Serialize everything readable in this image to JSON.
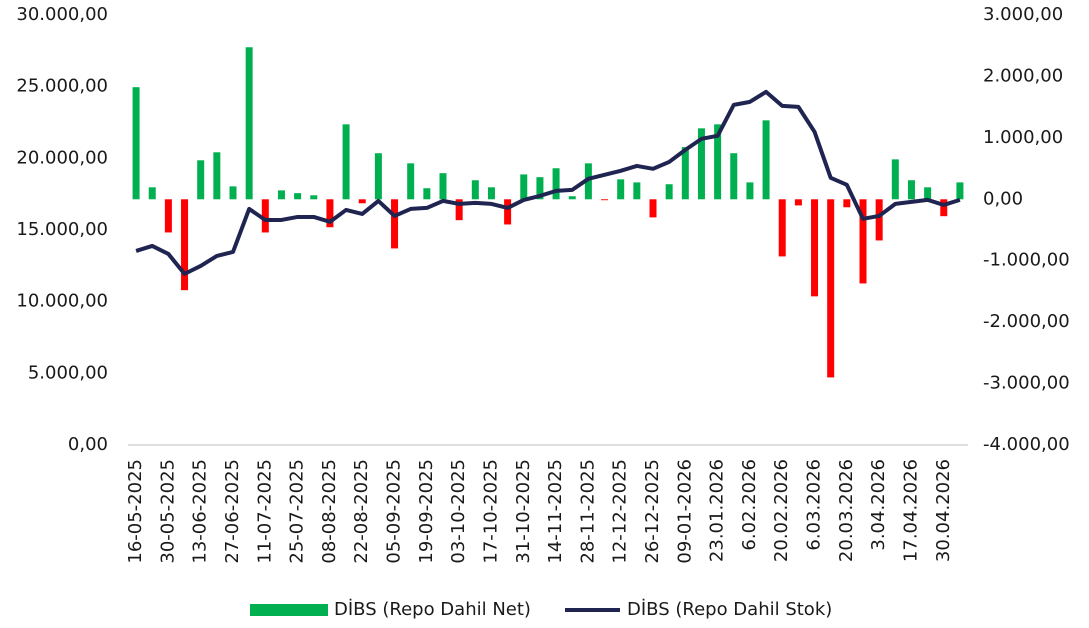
{
  "chart_data": {
    "type": "bar-line",
    "categories": [
      "16-05-2025",
      null,
      "30-05-2025",
      null,
      "13-06-2025",
      null,
      "27-06-2025",
      null,
      "11-07-2025",
      null,
      "25-07-2025",
      null,
      "08-08-2025",
      null,
      "22-08-2025",
      null,
      "05-09-2025",
      null,
      "19-09-2025",
      null,
      "03-10-2025",
      null,
      "17-10-2025",
      null,
      "31-10-2025",
      null,
      "14-11-2025",
      null,
      "28-11-2025",
      null,
      "12-12-2025",
      null,
      "26-12-2025",
      null,
      "09-01-2026",
      null,
      "23.01.2026",
      null,
      "6.02.2026",
      null,
      "20.02.2026",
      null,
      "6.03.2026",
      null,
      "20.03.2026",
      null,
      "3.04.2026",
      null,
      "17.04.2026",
      null,
      "30.04.2026",
      null
    ],
    "series": [
      {
        "name": "DİBS (Repo Dahil Net)",
        "kind": "bar",
        "axis": "y2",
        "color": "#00b050",
        "negative_color": "#ff0000",
        "values": [
          1825,
          195,
          -540,
          -1480,
          635,
          765,
          210,
          2475,
          -540,
          145,
          100,
          65,
          -455,
          1220,
          -65,
          750,
          -800,
          585,
          180,
          425,
          -340,
          310,
          195,
          -410,
          405,
          360,
          505,
          50,
          585,
          -15,
          325,
          275,
          -295,
          245,
          850,
          1155,
          1220,
          750,
          275,
          1285,
          -930,
          -100,
          -1580,
          -2900,
          -130,
          -1370,
          -670,
          650,
          310,
          195,
          -275,
          275
        ]
      },
      {
        "name": "DİBS (Repo Dahil Stok)",
        "kind": "line",
        "axis": "y",
        "color": "#1f2451",
        "values": [
          13540,
          13890,
          13330,
          11940,
          12490,
          13190,
          13470,
          16470,
          15700,
          15700,
          15910,
          15910,
          15570,
          16400,
          16120,
          17030,
          15980,
          16470,
          16540,
          17030,
          16820,
          16890,
          16820,
          16540,
          17100,
          17380,
          17730,
          17800,
          18570,
          18850,
          19130,
          19470,
          19270,
          19750,
          20590,
          21360,
          21570,
          23730,
          23940,
          24640,
          23660,
          23590,
          21850,
          18640,
          18150,
          15780,
          15980,
          16820,
          16960,
          17100,
          16750,
          17100
        ]
      }
    ],
    "ylim": [
      0,
      30000
    ],
    "yticks": [
      {
        "value": 0,
        "label": "0,00"
      },
      {
        "value": 5000,
        "label": "5.000,00"
      },
      {
        "value": 10000,
        "label": "10.000,00"
      },
      {
        "value": 15000,
        "label": "15.000,00"
      },
      {
        "value": 20000,
        "label": "20.000,00"
      },
      {
        "value": 25000,
        "label": "25.000,00"
      },
      {
        "value": 30000,
        "label": "30.000,00"
      }
    ],
    "y2lim": [
      -4000,
      3000
    ],
    "y2ticks": [
      {
        "value": -4000,
        "label": "-4.000,00"
      },
      {
        "value": -3000,
        "label": "-3.000,00"
      },
      {
        "value": -2000,
        "label": "-2.000,00"
      },
      {
        "value": -1000,
        "label": "-1.000,00"
      },
      {
        "value": 0,
        "label": "0,00"
      },
      {
        "value": 1000,
        "label": "1.000,00"
      },
      {
        "value": 2000,
        "label": "2.000,00"
      },
      {
        "value": 3000,
        "label": "3.000,00"
      }
    ],
    "legend": "bottom"
  }
}
